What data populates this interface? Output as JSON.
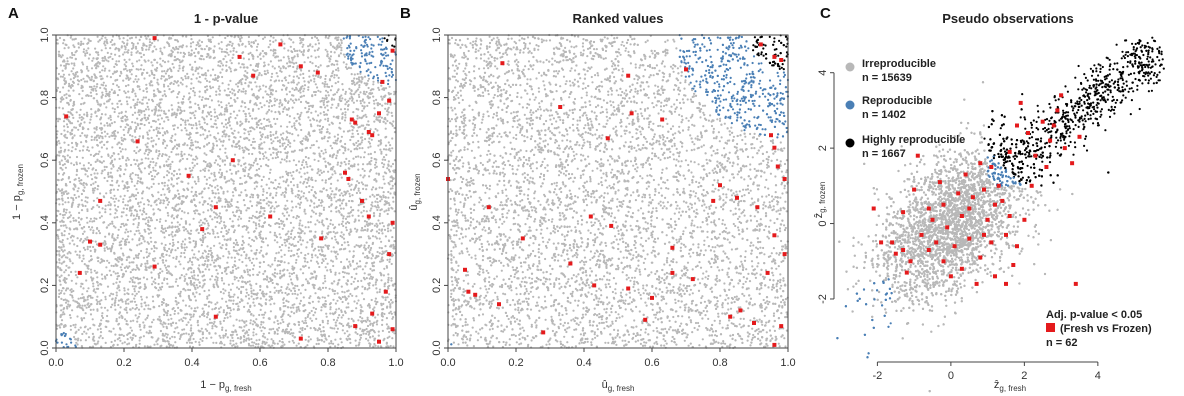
{
  "chart_data": [
    {
      "type": "scatter",
      "panel_letter": "A",
      "title": "1 - p-value",
      "xlabel": {
        "main": "1 − p",
        "sub": "g, fresh"
      },
      "ylabel": {
        "main": "1 − p",
        "sub": "g, frozen"
      },
      "xlim": [
        0,
        1
      ],
      "ylim": [
        0,
        1
      ],
      "xticks": [
        "0.0",
        "0.2",
        "0.4",
        "0.6",
        "0.8",
        "1.0"
      ],
      "yticks": [
        "0.0",
        "0.2",
        "0.4",
        "0.6",
        "0.8",
        "1.0"
      ],
      "colors": {
        "irreproducible": "#b8b8b8",
        "reproducible": "#4a7fb5",
        "highly": "#000000",
        "de": "#e41a1c"
      },
      "red_points": [
        [
          0.03,
          0.74
        ],
        [
          0.24,
          0.66
        ],
        [
          0.29,
          0.99
        ],
        [
          0.54,
          0.93
        ],
        [
          0.58,
          0.87
        ],
        [
          0.66,
          0.97
        ],
        [
          0.72,
          0.9
        ],
        [
          0.77,
          0.88
        ],
        [
          0.87,
          0.73
        ],
        [
          0.88,
          0.72
        ],
        [
          0.92,
          0.69
        ],
        [
          0.93,
          0.68
        ],
        [
          0.95,
          0.75
        ],
        [
          0.96,
          0.85
        ],
        [
          0.98,
          0.79
        ],
        [
          0.99,
          0.95
        ],
        [
          0.85,
          0.56
        ],
        [
          0.86,
          0.54
        ],
        [
          0.52,
          0.6
        ],
        [
          0.39,
          0.55
        ],
        [
          0.47,
          0.45
        ],
        [
          0.43,
          0.38
        ],
        [
          0.63,
          0.42
        ],
        [
          0.78,
          0.35
        ],
        [
          0.9,
          0.47
        ],
        [
          0.92,
          0.42
        ],
        [
          0.13,
          0.47
        ],
        [
          0.1,
          0.34
        ],
        [
          0.13,
          0.33
        ],
        [
          0.07,
          0.24
        ],
        [
          0.29,
          0.26
        ],
        [
          0.47,
          0.1
        ],
        [
          0.72,
          0.03
        ],
        [
          0.88,
          0.07
        ],
        [
          0.93,
          0.11
        ],
        [
          0.97,
          0.18
        ],
        [
          0.98,
          0.3
        ],
        [
          0.99,
          0.4
        ],
        [
          0.95,
          0.02
        ],
        [
          0.99,
          0.06
        ]
      ]
    },
    {
      "type": "scatter",
      "panel_letter": "B",
      "title": "Ranked values",
      "xlabel": {
        "main": "û",
        "sub": "g, fresh"
      },
      "ylabel": {
        "main": "û",
        "sub": "g, frozen"
      },
      "xlim": [
        0,
        1
      ],
      "ylim": [
        0,
        1
      ],
      "xticks": [
        "0.0",
        "0.2",
        "0.4",
        "0.6",
        "0.8",
        "1.0"
      ],
      "yticks": [
        "0.0",
        "0.2",
        "0.4",
        "0.6",
        "0.8",
        "1.0"
      ],
      "colors": {
        "irreproducible": "#b8b8b8",
        "reproducible": "#4a7fb5",
        "highly": "#000000",
        "de": "#e41a1c"
      },
      "red_points": [
        [
          0.16,
          0.91
        ],
        [
          0.33,
          0.77
        ],
        [
          0.53,
          0.87
        ],
        [
          0.54,
          0.75
        ],
        [
          0.47,
          0.67
        ],
        [
          0.63,
          0.73
        ],
        [
          0.7,
          0.89
        ],
        [
          0.92,
          0.97
        ],
        [
          0.96,
          0.93
        ],
        [
          0.98,
          0.92
        ],
        [
          0.95,
          0.68
        ],
        [
          0.96,
          0.64
        ],
        [
          0.97,
          0.58
        ],
        [
          0.99,
          0.54
        ],
        [
          0.8,
          0.52
        ],
        [
          0.78,
          0.47
        ],
        [
          0.85,
          0.48
        ],
        [
          0.91,
          0.45
        ],
        [
          0.12,
          0.45
        ],
        [
          0.42,
          0.42
        ],
        [
          0.48,
          0.39
        ],
        [
          0.22,
          0.35
        ],
        [
          0.05,
          0.25
        ],
        [
          0.06,
          0.18
        ],
        [
          0.08,
          0.17
        ],
        [
          0.15,
          0.14
        ],
        [
          0.28,
          0.05
        ],
        [
          0.36,
          0.27
        ],
        [
          0.43,
          0.2
        ],
        [
          0.53,
          0.19
        ],
        [
          0.6,
          0.16
        ],
        [
          0.58,
          0.09
        ],
        [
          0.66,
          0.24
        ],
        [
          0.66,
          0.32
        ],
        [
          0.72,
          0.22
        ],
        [
          0.83,
          0.1
        ],
        [
          0.86,
          0.12
        ],
        [
          0.9,
          0.08
        ],
        [
          0.94,
          0.24
        ],
        [
          0.96,
          0.36
        ],
        [
          0.99,
          0.3
        ],
        [
          0.98,
          0.07
        ],
        [
          0.96,
          0.01
        ],
        [
          0.0,
          0.54
        ]
      ]
    },
    {
      "type": "scatter",
      "panel_letter": "C",
      "title": "Pseudo observations",
      "xlabel": {
        "main": "ẑ",
        "sub": "g, fresh"
      },
      "ylabel": {
        "main": "ẑ",
        "sub": "g, frozen"
      },
      "xlim": [
        -2.8,
        5.8
      ],
      "ylim": [
        -3.3,
        5.0
      ],
      "xticks": [
        -2,
        0,
        2,
        4
      ],
      "yticks": [
        -2,
        0,
        2,
        4
      ],
      "colors": {
        "irreproducible": "#b8b8b8",
        "reproducible": "#4a7fb5",
        "highly": "#000000",
        "de": "#e41a1c"
      },
      "legend": [
        {
          "label": "Irreproducible",
          "count": "n = 15639",
          "color": "#b8b8b8"
        },
        {
          "label": "Reproducible",
          "count": "n = 1402",
          "color": "#4a7fb5"
        },
        {
          "label": "Highly reproducible",
          "count": "n = 1667",
          "color": "#000000"
        }
      ],
      "legend2": {
        "line1": "Adj. p-value < 0.05",
        "line2": "(Fresh vs Frozen)",
        "count": "n = 62",
        "color": "#e41a1c"
      },
      "red_points": [
        [
          -2.1,
          0.4
        ],
        [
          -1.6,
          -0.5
        ],
        [
          -1.5,
          -0.8
        ],
        [
          -1.3,
          -0.7
        ],
        [
          -1.1,
          -1.0
        ],
        [
          -0.8,
          -0.3
        ],
        [
          -0.5,
          0.1
        ],
        [
          -0.6,
          -0.7
        ],
        [
          -0.4,
          -0.5
        ],
        [
          -0.2,
          0.5
        ],
        [
          -0.1,
          -0.1
        ],
        [
          0.1,
          -0.6
        ],
        [
          0.3,
          -1.2
        ],
        [
          0.3,
          0.2
        ],
        [
          0.5,
          -0.4
        ],
        [
          0.6,
          0.7
        ],
        [
          0.8,
          -0.9
        ],
        [
          0.9,
          -0.3
        ],
        [
          1.0,
          0.1
        ],
        [
          1.1,
          -0.5
        ],
        [
          1.2,
          0.5
        ],
        [
          1.3,
          1.0
        ],
        [
          1.5,
          -0.3
        ],
        [
          1.6,
          1.9
        ],
        [
          1.8,
          2.6
        ],
        [
          1.9,
          3.2
        ],
        [
          2.1,
          2.4
        ],
        [
          2.3,
          1.8
        ],
        [
          2.5,
          2.7
        ],
        [
          2.7,
          2.2
        ],
        [
          2.9,
          3.0
        ],
        [
          3.1,
          2.0
        ],
        [
          3.3,
          1.6
        ],
        [
          3.4,
          -1.6
        ],
        [
          3.5,
          2.3
        ],
        [
          1.7,
          -1.1
        ],
        [
          1.5,
          -1.6
        ],
        [
          0.0,
          -1.4
        ],
        [
          -0.9,
          1.8
        ],
        [
          -1.0,
          0.9
        ],
        [
          0.4,
          1.3
        ],
        [
          -0.3,
          1.1
        ],
        [
          2.0,
          0.1
        ],
        [
          1.2,
          -1.4
        ],
        [
          -1.9,
          -0.5
        ],
        [
          0.7,
          -1.6
        ],
        [
          2.6,
          1.5
        ],
        [
          1.1,
          1.5
        ],
        [
          -0.6,
          0.4
        ],
        [
          0.2,
          0.8
        ],
        [
          1.4,
          0.6
        ],
        [
          2.2,
          1.0
        ],
        [
          -1.3,
          0.3
        ],
        [
          0.9,
          0.9
        ],
        [
          1.8,
          -0.6
        ],
        [
          -0.2,
          -1.0
        ],
        [
          2.8,
          2.6
        ],
        [
          3.0,
          3.4
        ],
        [
          1.6,
          0.2
        ],
        [
          0.5,
          0.4
        ],
        [
          -1.2,
          -1.3
        ],
        [
          0.8,
          1.6
        ]
      ]
    }
  ]
}
